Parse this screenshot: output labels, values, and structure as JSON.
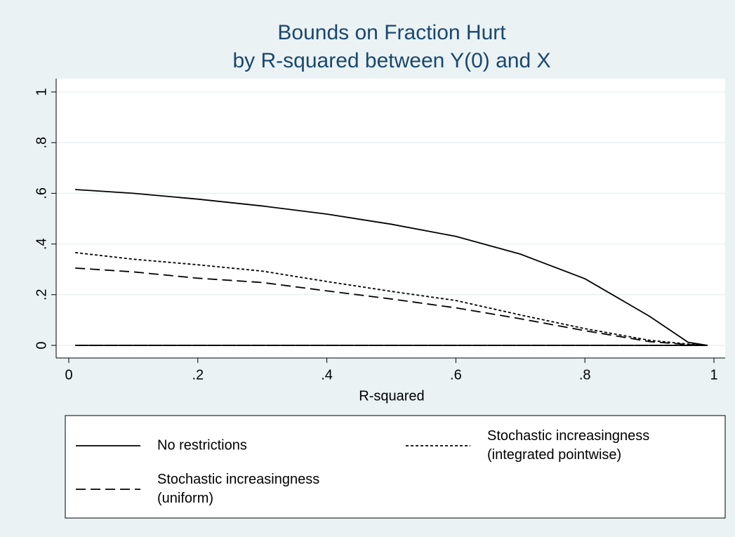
{
  "chart_data": {
    "type": "line",
    "title": [
      "Bounds on Fraction Hurt",
      "by R-squared between Y(0) and X"
    ],
    "x_label": "R-squared",
    "x": [
      0.01,
      0.1,
      0.2,
      0.3,
      0.4,
      0.5,
      0.6,
      0.7,
      0.8,
      0.9,
      0.96,
      0.99
    ],
    "series": [
      {
        "name": [
          "No restrictions"
        ],
        "color": "#000000",
        "dash": "none",
        "values": [
          0.615,
          0.6,
          0.577,
          0.55,
          0.518,
          0.478,
          0.43,
          0.36,
          0.263,
          0.115,
          0.012,
          0
        ],
        "lower": [
          0,
          0,
          0,
          0,
          0,
          0,
          0,
          0,
          0,
          0,
          0,
          0
        ]
      },
      {
        "name": [
          "Stochastic increasingness",
          "(integrated pointwise)"
        ],
        "color": "#000000",
        "dash": "4 3",
        "values": [
          0.366,
          0.34,
          0.318,
          0.293,
          0.252,
          0.213,
          0.177,
          0.12,
          0.066,
          0.02,
          0.005,
          0
        ],
        "lower": [
          0,
          0,
          0,
          0,
          0,
          0,
          0,
          0,
          0,
          0,
          0,
          0
        ]
      },
      {
        "name": [
          "Stochastic increasingness",
          "(uniform)"
        ],
        "color": "#000000",
        "dash": "14 7",
        "values": [
          0.305,
          0.29,
          0.265,
          0.248,
          0.215,
          0.183,
          0.148,
          0.105,
          0.058,
          0.015,
          0.003,
          0
        ],
        "lower": [
          0,
          0,
          0,
          0,
          0,
          0,
          0,
          0,
          0,
          0,
          0,
          0
        ]
      }
    ],
    "xlim": [
      0,
      1
    ],
    "ylim": [
      0,
      1
    ],
    "xticks": [
      0,
      {
        "value": 0.2,
        "label": ".2"
      },
      {
        "value": 0.4,
        "label": ".4"
      },
      {
        "value": 0.6,
        "label": ".6"
      },
      {
        "value": 0.8,
        "label": ".8"
      },
      1
    ],
    "yticks": [
      0,
      {
        "value": 0.2,
        "label": ".2"
      },
      {
        "value": 0.4,
        "label": ".4"
      },
      {
        "value": 0.6,
        "label": ".6"
      },
      {
        "value": 0.8,
        "label": ".8"
      },
      1
    ],
    "grid": true
  }
}
